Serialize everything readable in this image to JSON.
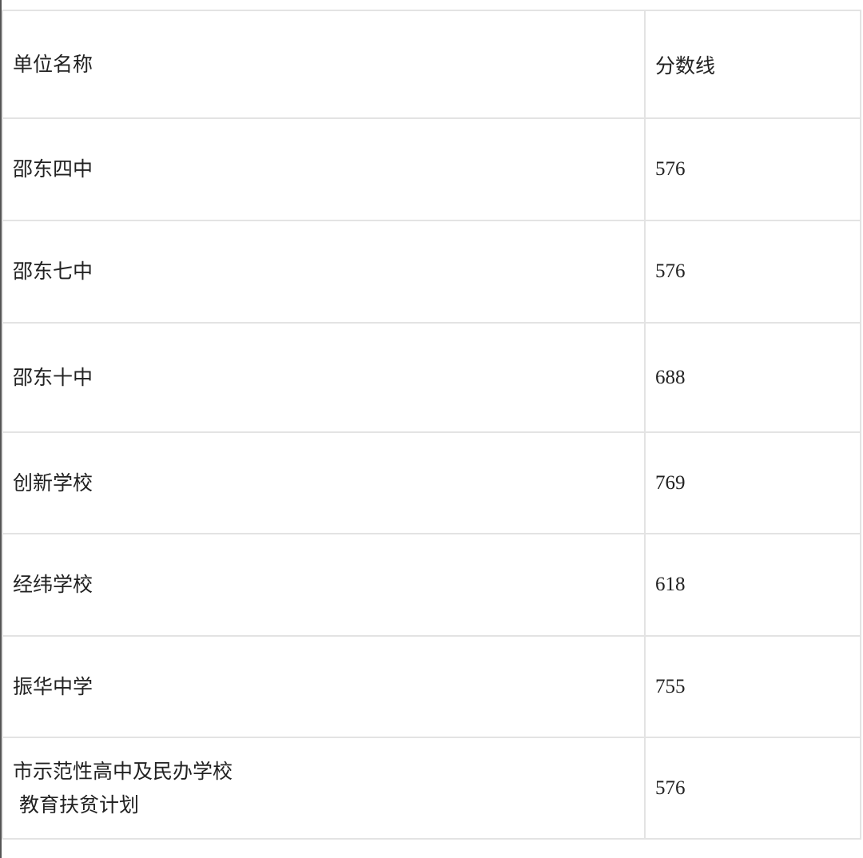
{
  "table": {
    "headers": [
      "单位名称",
      "分数线"
    ],
    "rows": [
      {
        "name": "邵东四中",
        "score": "576"
      },
      {
        "name": "邵东七中",
        "score": "576"
      },
      {
        "name": "邵东十中",
        "score": "688"
      },
      {
        "name": "创新学校",
        "score": "769"
      },
      {
        "name": "经纬学校",
        "score": "618"
      },
      {
        "name": "振华中学",
        "score": "755"
      },
      {
        "name": "市示范性高中及民办学校",
        "name_line2": "教育扶贫计划",
        "score": "576"
      }
    ]
  }
}
